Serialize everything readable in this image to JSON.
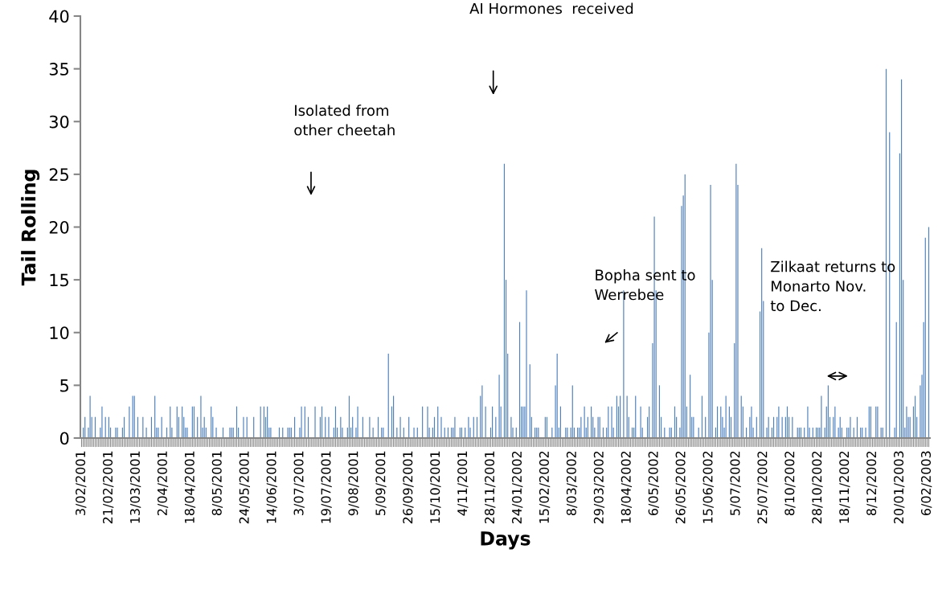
{
  "chart_data": {
    "type": "bar",
    "xlabel": "Days",
    "ylabel": "Tail Rolling",
    "color": "#4f81bd",
    "ylim": [
      0,
      40
    ],
    "yticks": [
      0,
      5,
      10,
      15,
      20,
      25,
      30,
      35,
      40
    ],
    "annotations": [
      "Isolated from\nother cheetah",
      "AI Hormones  received",
      "Bopha sent to\nWerrebee",
      "Zilkaat returns to\nMonarto Nov.\nto Dec."
    ],
    "categories": [
      "3/02/2001",
      null,
      null,
      null,
      null,
      null,
      null,
      null,
      null,
      null,
      null,
      null,
      null,
      null,
      null,
      null,
      "21/02/2001",
      null,
      null,
      null,
      null,
      null,
      null,
      null,
      null,
      null,
      null,
      null,
      null,
      null,
      null,
      null,
      "13/03/2001",
      null,
      null,
      null,
      null,
      null,
      null,
      null,
      null,
      null,
      null,
      null,
      null,
      null,
      null,
      null,
      "2/04/2001",
      null,
      null,
      null,
      null,
      null,
      null,
      null,
      null,
      null,
      null,
      null,
      null,
      null,
      null,
      null,
      "18/04/2001",
      null,
      null,
      null,
      null,
      null,
      null,
      null,
      null,
      null,
      null,
      null,
      null,
      null,
      null,
      null,
      "8/05/2001",
      null,
      null,
      null,
      null,
      null,
      null,
      null,
      null,
      null,
      null,
      null,
      null,
      null,
      null,
      null,
      "24/05/2001",
      null,
      null,
      null,
      null,
      null,
      null,
      null,
      null,
      null,
      null,
      null,
      null,
      null,
      null,
      null,
      "14/06/2001",
      null,
      null,
      null,
      null,
      null,
      null,
      null,
      null,
      null,
      null,
      null,
      null,
      null,
      null,
      null,
      "3/07/2001",
      null,
      null,
      null,
      null,
      null,
      null,
      null,
      null,
      null,
      null,
      null,
      null,
      null,
      null,
      null,
      "19/07/2001",
      null,
      null,
      null,
      null,
      null,
      null,
      null,
      null,
      null,
      null,
      null,
      null,
      null,
      null,
      null,
      "9/08/2001",
      null,
      null,
      null,
      null,
      null,
      null,
      null,
      null,
      null,
      null,
      null,
      null,
      null,
      null,
      null,
      "5/09/2001",
      null,
      null,
      null,
      null,
      null,
      null,
      null,
      null,
      null,
      null,
      null,
      null,
      null,
      null,
      null,
      "26/09/2001",
      null,
      null,
      null,
      null,
      null,
      null,
      null,
      null,
      null,
      null,
      null,
      null,
      null,
      null,
      null,
      "15/10/2001",
      null,
      null,
      null,
      null,
      null,
      null,
      null,
      null,
      null,
      null,
      null,
      null,
      null,
      null,
      null,
      "4/11/2001",
      null,
      null,
      null,
      null,
      null,
      null,
      null,
      null,
      null,
      null,
      null,
      null,
      null,
      null,
      null,
      "28/11/2001",
      null,
      null,
      null,
      null,
      null,
      null,
      null,
      null,
      null,
      null,
      null,
      null,
      null,
      null,
      null,
      "24/01/2002",
      null,
      null,
      null,
      null,
      null,
      null,
      null,
      null,
      null,
      null,
      null,
      null,
      null,
      null,
      null,
      "15/02/2002",
      null,
      null,
      null,
      null,
      null,
      null,
      null,
      null,
      null,
      null,
      null,
      null,
      null,
      null,
      null,
      "8/03/2002",
      null,
      null,
      null,
      null,
      null,
      null,
      null,
      null,
      null,
      null,
      null,
      null,
      null,
      null,
      null,
      "29/03/2002",
      null,
      null,
      null,
      null,
      null,
      null,
      null,
      null,
      null,
      null,
      null,
      null,
      null,
      null,
      null,
      "18/04/2002",
      null,
      null,
      null,
      null,
      null,
      null,
      null,
      null,
      null,
      null,
      null,
      null,
      null,
      null,
      null,
      "6/05/2002",
      null,
      null,
      null,
      null,
      null,
      null,
      null,
      null,
      null,
      null,
      null,
      null,
      null,
      null,
      null,
      "26/05/2002",
      null,
      null,
      null,
      null,
      null,
      null,
      null,
      null,
      null,
      null,
      null,
      null,
      null,
      null,
      null,
      "15/06/2002",
      null,
      null,
      null,
      null,
      null,
      null,
      null,
      null,
      null,
      null,
      null,
      null,
      null,
      null,
      null,
      "5/07/2002",
      null,
      null,
      null,
      null,
      null,
      null,
      null,
      null,
      null,
      null,
      null,
      null,
      null,
      null,
      null,
      "25/07/2002",
      null,
      null,
      null,
      null,
      null,
      null,
      null,
      null,
      null,
      null,
      null,
      null,
      null,
      null,
      null,
      "8/10/2002",
      null,
      null,
      null,
      null,
      null,
      null,
      null,
      null,
      null,
      null,
      null,
      null,
      null,
      null,
      null,
      "28/10/2002",
      null,
      null,
      null,
      null,
      null,
      null,
      null,
      null,
      null,
      null,
      null,
      null,
      null,
      null,
      null,
      "18/11/2002",
      null,
      null,
      null,
      null,
      null,
      null,
      null,
      null,
      null,
      null,
      null,
      null,
      null,
      null,
      null,
      "8/12/2002",
      null,
      null,
      null,
      null,
      null,
      null,
      null,
      null,
      null,
      null,
      null,
      null,
      null,
      null,
      null,
      "20/01/2003",
      null,
      null,
      null,
      null,
      null,
      null,
      null,
      null,
      null,
      null,
      null,
      null,
      null,
      null,
      null,
      "6/02/2003",
      null
    ],
    "values": [
      0,
      1,
      2,
      0,
      1,
      4,
      2,
      0,
      2,
      0,
      0,
      1,
      3,
      0,
      2,
      0,
      2,
      1,
      0,
      0,
      1,
      1,
      0,
      0,
      1,
      2,
      0,
      0,
      3,
      0,
      4,
      4,
      0,
      2,
      0,
      0,
      2,
      0,
      1,
      0,
      0,
      2,
      0,
      4,
      1,
      1,
      0,
      2,
      0,
      0,
      1,
      0,
      3,
      1,
      0,
      0,
      3,
      2,
      0,
      3,
      2,
      1,
      1,
      0,
      0,
      3,
      3,
      0,
      2,
      0,
      4,
      1,
      2,
      1,
      0,
      0,
      3,
      2,
      0,
      1,
      0,
      0,
      0,
      1,
      0,
      0,
      0,
      1,
      1,
      1,
      0,
      3,
      1,
      0,
      0,
      2,
      0,
      2,
      0,
      0,
      0,
      2,
      0,
      0,
      0,
      3,
      0,
      3,
      2,
      3,
      1,
      1,
      0,
      0,
      0,
      0,
      1,
      0,
      1,
      0,
      0,
      1,
      1,
      1,
      0,
      2,
      0,
      0,
      1,
      3,
      0,
      3,
      0,
      2,
      0,
      0,
      0,
      3,
      0,
      0,
      2,
      3,
      0,
      2,
      0,
      2,
      0,
      0,
      1,
      3,
      1,
      0,
      2,
      1,
      0,
      0,
      1,
      4,
      1,
      2,
      0,
      1,
      3,
      0,
      0,
      2,
      0,
      0,
      0,
      2,
      0,
      1,
      0,
      0,
      2,
      0,
      1,
      1,
      0,
      0,
      8,
      0,
      3,
      4,
      0,
      1,
      0,
      2,
      0,
      1,
      0,
      0,
      2,
      0,
      0,
      1,
      0,
      1,
      0,
      0,
      3,
      0,
      0,
      3,
      1,
      0,
      1,
      2,
      0,
      3,
      0,
      2,
      0,
      1,
      0,
      1,
      0,
      1,
      1,
      2,
      0,
      0,
      1,
      1,
      0,
      1,
      0,
      2,
      1,
      0,
      2,
      0,
      2,
      0,
      4,
      5,
      0,
      3,
      0,
      0,
      1,
      3,
      0,
      2,
      0,
      6,
      3,
      0,
      26,
      15,
      8,
      0,
      2,
      1,
      0,
      1,
      0,
      11,
      3,
      3,
      3,
      14,
      0,
      7,
      2,
      0,
      1,
      1,
      1,
      0,
      0,
      0,
      2,
      2,
      0,
      0,
      1,
      0,
      5,
      8,
      1,
      3,
      0,
      0,
      1,
      1,
      0,
      1,
      5,
      1,
      0,
      1,
      1,
      2,
      0,
      3,
      1,
      2,
      0,
      3,
      2,
      1,
      0,
      2,
      2,
      0,
      1,
      0,
      1,
      3,
      0,
      3,
      1,
      0,
      4,
      3,
      4,
      0,
      14,
      0,
      4,
      2,
      0,
      1,
      1,
      4,
      0,
      0,
      3,
      1,
      0,
      0,
      2,
      3,
      0,
      9,
      21,
      14,
      0,
      5,
      2,
      0,
      1,
      0,
      0,
      1,
      1,
      0,
      3,
      2,
      0,
      1,
      22,
      23,
      25,
      3,
      0,
      6,
      2,
      2,
      0,
      0,
      1,
      0,
      4,
      0,
      2,
      0,
      10,
      24,
      15,
      0,
      1,
      3,
      0,
      3,
      2,
      1,
      4,
      0,
      3,
      2,
      0,
      9,
      26,
      24,
      0,
      4,
      3,
      0,
      1,
      0,
      2,
      3,
      1,
      0,
      2,
      0,
      12,
      18,
      13,
      0,
      1,
      2,
      0,
      1,
      2,
      0,
      2,
      3,
      0,
      2,
      0,
      2,
      3,
      2,
      0,
      2,
      0,
      0,
      1,
      1,
      1,
      0,
      1,
      0,
      3,
      1,
      0,
      1,
      0,
      1,
      1,
      1,
      4,
      0,
      1,
      3,
      5,
      2,
      0,
      2,
      3,
      0,
      1,
      2,
      1,
      0,
      0,
      1,
      1,
      2,
      0,
      1,
      0,
      2,
      0,
      1,
      1,
      0,
      1,
      0,
      3,
      3,
      0,
      0,
      3,
      3,
      0,
      1,
      1,
      0,
      35,
      0,
      29,
      0,
      0,
      1,
      11,
      0,
      27,
      34,
      15,
      1,
      3,
      2,
      2,
      0,
      3,
      4,
      2,
      0,
      5,
      6,
      11,
      19,
      0,
      20
    ]
  }
}
